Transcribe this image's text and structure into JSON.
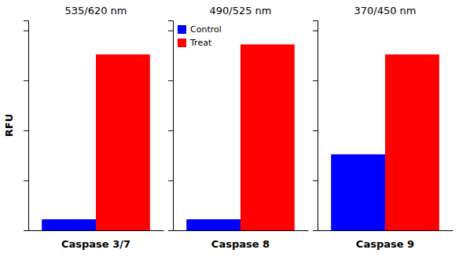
{
  "chart_data": [
    {
      "type": "bar",
      "title": "535/620 nm",
      "xlabel": "Caspase 3/7",
      "ylabel": "RFU",
      "categories": [
        null
      ],
      "series": [
        {
          "name": "Control",
          "color": "#0000FF",
          "values": [
            0.055
          ]
        },
        {
          "name": "Treat",
          "color": "#FF0000",
          "values": [
            0.88
          ]
        }
      ],
      "ylim": [
        0,
        1.05
      ],
      "yticks": [
        0,
        0.25,
        0.5,
        0.75,
        1.0
      ],
      "tick_labels": false
    },
    {
      "type": "bar",
      "title": "490/525 nm",
      "xlabel": "Caspase 8",
      "categories": [
        null
      ],
      "series": [
        {
          "name": "Control",
          "color": "#0000FF",
          "values": [
            0.055
          ]
        },
        {
          "name": "Treat",
          "color": "#FF0000",
          "values": [
            0.93
          ]
        }
      ],
      "ylim": [
        0,
        1.05
      ],
      "yticks": [
        0,
        0.25,
        0.5,
        0.75,
        1.0
      ],
      "tick_labels": false,
      "legend": "upper left"
    },
    {
      "type": "bar",
      "title": "370/450 nm",
      "xlabel": "Caspase 9",
      "categories": [
        null
      ],
      "series": [
        {
          "name": "Control",
          "color": "#0000FF",
          "values": [
            0.38
          ]
        },
        {
          "name": "Treat",
          "color": "#FF0000",
          "values": [
            0.88
          ]
        }
      ],
      "ylim": [
        0,
        1.05
      ],
      "yticks": [
        0,
        0.25,
        0.5,
        0.75,
        1.0
      ],
      "tick_labels": false
    }
  ]
}
